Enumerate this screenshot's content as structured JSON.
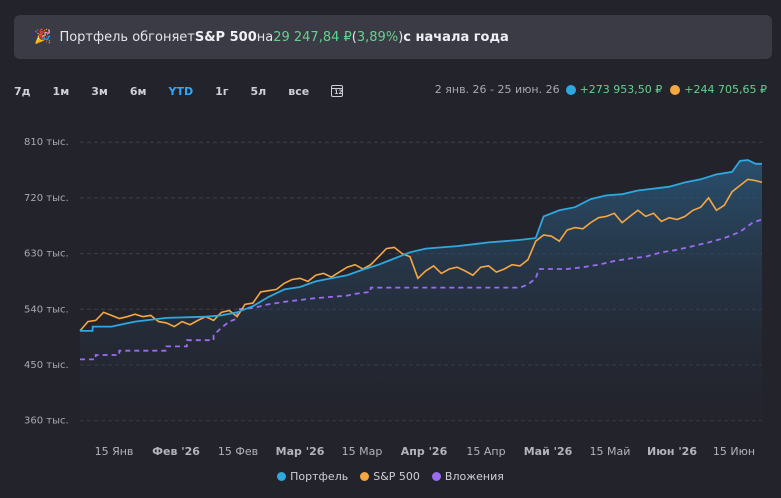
{
  "banner": {
    "icon": "party-popper-icon",
    "prefix": "Портфель обгоняет ",
    "benchmark": "S&P 500",
    "middle": " на ",
    "amount": "29 247,84 ₽",
    "paren_open": " (",
    "percent": "3,89%",
    "paren_close": ")",
    "suffix": " с начала года"
  },
  "toolbar": {
    "periods": [
      "7д",
      "1м",
      "3м",
      "6м",
      "YTD",
      "1г",
      "5л",
      "все"
    ],
    "active": "YTD",
    "calendar_icon": "calendar-icon",
    "calendar_label": "12"
  },
  "summary": {
    "range": "2 янв. 26 - 25 июн. 26",
    "portfolio_change": "+273 953,50 ₽",
    "sp_change": "+244 705,65 ₽"
  },
  "colors": {
    "portfolio": "#2ea8e0",
    "sp500": "#f5a742",
    "investments": "#9a6cf2",
    "accent": "#2ea8ff",
    "positive": "#66d18f"
  },
  "chart_data": {
    "type": "line",
    "ylim": [
      340,
      820
    ],
    "yticks": [
      810,
      720,
      630,
      540,
      450,
      360
    ],
    "ytick_labels": [
      "810 тыс.",
      "720 тыс.",
      "630 тыс.",
      "540 тыс.",
      "450 тыс.",
      "360 тыс."
    ],
    "xticks": [
      "15 Янв",
      "Фев '26",
      "15 Фев",
      "Мар '26",
      "15 Мар",
      "Апр '26",
      "15 Апр",
      "Май '26",
      "15 Май",
      "Июн '26",
      "15 Июн"
    ],
    "xtick_bold": [
      false,
      true,
      false,
      true,
      false,
      true,
      false,
      true,
      false,
      true,
      false
    ],
    "grid": true,
    "legend_position": "bottom",
    "unit": "тыс. ₽",
    "series": [
      {
        "name": "Портфель",
        "values": [
          [
            0,
            505
          ],
          [
            8,
            505
          ],
          [
            8,
            512
          ],
          [
            20,
            512
          ],
          [
            35,
            520
          ],
          [
            55,
            526
          ],
          [
            80,
            528
          ],
          [
            90,
            530
          ],
          [
            100,
            535
          ],
          [
            110,
            545
          ],
          [
            120,
            560
          ],
          [
            130,
            572
          ],
          [
            140,
            576
          ],
          [
            150,
            585
          ],
          [
            160,
            590
          ],
          [
            170,
            595
          ],
          [
            180,
            604
          ],
          [
            190,
            612
          ],
          [
            200,
            622
          ],
          [
            210,
            632
          ],
          [
            220,
            638
          ],
          [
            230,
            640
          ],
          [
            240,
            642
          ],
          [
            250,
            645
          ],
          [
            260,
            648
          ],
          [
            270,
            650
          ],
          [
            280,
            652
          ],
          [
            290,
            655
          ],
          [
            295,
            690
          ],
          [
            305,
            700
          ],
          [
            315,
            705
          ],
          [
            325,
            718
          ],
          [
            335,
            724
          ],
          [
            345,
            726
          ],
          [
            355,
            732
          ],
          [
            365,
            735
          ],
          [
            375,
            738
          ],
          [
            385,
            745
          ],
          [
            395,
            750
          ],
          [
            405,
            758
          ],
          [
            415,
            762
          ],
          [
            420,
            780
          ],
          [
            425,
            781
          ],
          [
            430,
            775
          ],
          [
            434,
            775
          ]
        ]
      },
      {
        "name": "S&P 500",
        "values": [
          [
            0,
            505
          ],
          [
            5,
            520
          ],
          [
            10,
            522
          ],
          [
            15,
            535
          ],
          [
            20,
            530
          ],
          [
            25,
            525
          ],
          [
            30,
            528
          ],
          [
            35,
            532
          ],
          [
            40,
            528
          ],
          [
            45,
            530
          ],
          [
            50,
            520
          ],
          [
            55,
            518
          ],
          [
            60,
            512
          ],
          [
            65,
            520
          ],
          [
            70,
            515
          ],
          [
            75,
            522
          ],
          [
            80,
            528
          ],
          [
            85,
            522
          ],
          [
            90,
            535
          ],
          [
            95,
            538
          ],
          [
            100,
            528
          ],
          [
            105,
            548
          ],
          [
            110,
            550
          ],
          [
            115,
            568
          ],
          [
            120,
            570
          ],
          [
            125,
            572
          ],
          [
            130,
            582
          ],
          [
            135,
            588
          ],
          [
            140,
            590
          ],
          [
            145,
            585
          ],
          [
            150,
            595
          ],
          [
            155,
            598
          ],
          [
            160,
            592
          ],
          [
            165,
            600
          ],
          [
            170,
            608
          ],
          [
            175,
            612
          ],
          [
            180,
            605
          ],
          [
            185,
            612
          ],
          [
            190,
            625
          ],
          [
            195,
            638
          ],
          [
            200,
            640
          ],
          [
            205,
            630
          ],
          [
            210,
            625
          ],
          [
            215,
            590
          ],
          [
            220,
            602
          ],
          [
            225,
            610
          ],
          [
            230,
            598
          ],
          [
            235,
            605
          ],
          [
            240,
            608
          ],
          [
            245,
            602
          ],
          [
            250,
            595
          ],
          [
            255,
            608
          ],
          [
            260,
            610
          ],
          [
            265,
            600
          ],
          [
            270,
            605
          ],
          [
            275,
            612
          ],
          [
            280,
            610
          ],
          [
            285,
            620
          ],
          [
            290,
            650
          ],
          [
            295,
            660
          ],
          [
            300,
            658
          ],
          [
            305,
            650
          ],
          [
            310,
            668
          ],
          [
            315,
            672
          ],
          [
            320,
            670
          ],
          [
            325,
            680
          ],
          [
            330,
            688
          ],
          [
            335,
            690
          ],
          [
            340,
            695
          ],
          [
            345,
            680
          ],
          [
            350,
            690
          ],
          [
            355,
            700
          ],
          [
            360,
            690
          ],
          [
            365,
            695
          ],
          [
            370,
            682
          ],
          [
            375,
            688
          ],
          [
            380,
            685
          ],
          [
            385,
            690
          ],
          [
            390,
            700
          ],
          [
            395,
            705
          ],
          [
            400,
            720
          ],
          [
            405,
            700
          ],
          [
            410,
            708
          ],
          [
            415,
            730
          ],
          [
            420,
            740
          ],
          [
            425,
            750
          ],
          [
            430,
            748
          ],
          [
            434,
            745
          ]
        ]
      },
      {
        "name": "Вложения",
        "values": [
          [
            0,
            459
          ],
          [
            10,
            459
          ],
          [
            10,
            466
          ],
          [
            25,
            466
          ],
          [
            25,
            473
          ],
          [
            55,
            473
          ],
          [
            55,
            480
          ],
          [
            68,
            480
          ],
          [
            68,
            490
          ],
          [
            85,
            490
          ],
          [
            85,
            498
          ],
          [
            90,
            510
          ],
          [
            95,
            520
          ],
          [
            100,
            525
          ],
          [
            100,
            540
          ],
          [
            110,
            542
          ],
          [
            120,
            548
          ],
          [
            130,
            552
          ],
          [
            140,
            555
          ],
          [
            150,
            558
          ],
          [
            160,
            560
          ],
          [
            170,
            562
          ],
          [
            175,
            565
          ],
          [
            185,
            568
          ],
          [
            185,
            575
          ],
          [
            225,
            575
          ],
          [
            225,
            575
          ],
          [
            280,
            575
          ],
          [
            285,
            580
          ],
          [
            290,
            590
          ],
          [
            292,
            605
          ],
          [
            310,
            605
          ],
          [
            320,
            608
          ],
          [
            330,
            612
          ],
          [
            340,
            618
          ],
          [
            350,
            622
          ],
          [
            360,
            625
          ],
          [
            370,
            632
          ],
          [
            380,
            636
          ],
          [
            390,
            642
          ],
          [
            400,
            648
          ],
          [
            410,
            655
          ],
          [
            420,
            665
          ],
          [
            428,
            680
          ],
          [
            434,
            685
          ]
        ]
      }
    ]
  },
  "legend": {
    "items": [
      "Портфель",
      "S&P 500",
      "Вложения"
    ]
  }
}
